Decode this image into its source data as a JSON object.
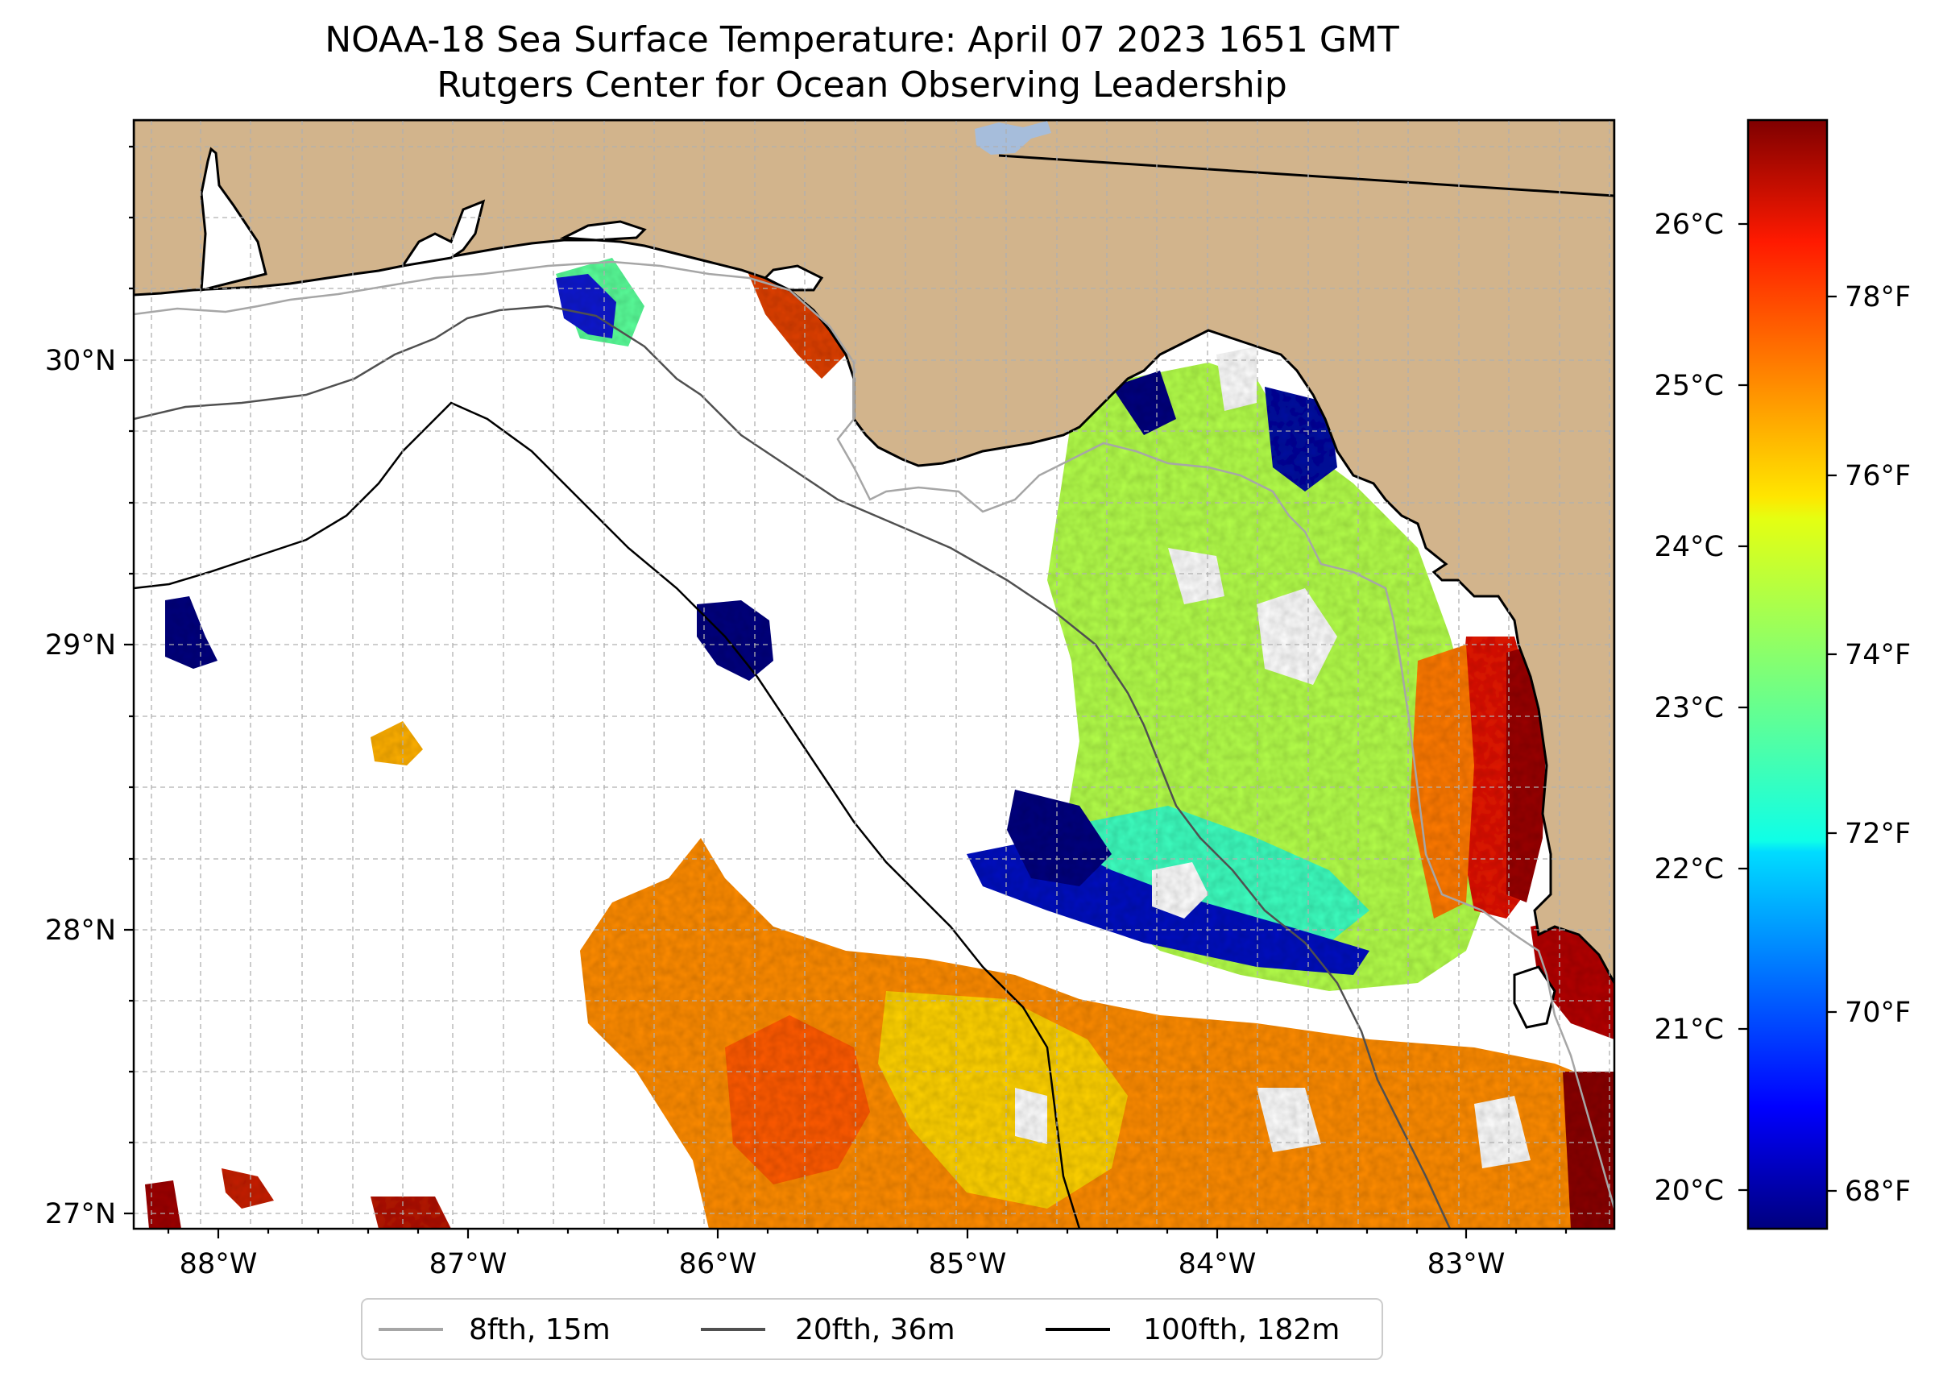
{
  "title": {
    "line1": "NOAA-18 Sea Surface Temperature: April 07 2023 1651 GMT",
    "line2": "Rutgers Center for Ocean Observing Leadership"
  },
  "map": {
    "lon_range": [
      -88.33,
      -82.43
    ],
    "lat_range": [
      26.93,
      30.84
    ],
    "land_color": "#d2b48c",
    "ocean_nodata_color": "#ffffff",
    "lake_color": "#a6bddb",
    "gridlines": true,
    "x_ticks": [
      {
        "lon": -88,
        "label": "88°W"
      },
      {
        "lon": -87,
        "label": "87°W"
      },
      {
        "lon": -86,
        "label": "86°W"
      },
      {
        "lon": -85,
        "label": "85°W"
      },
      {
        "lon": -84,
        "label": "84°W"
      },
      {
        "lon": -83,
        "label": "83°W"
      }
    ],
    "y_ticks": [
      {
        "lat": 27,
        "label": "27°N"
      },
      {
        "lat": 28,
        "label": "28°N"
      },
      {
        "lat": 29,
        "label": "29°N"
      },
      {
        "lat": 30,
        "label": "30°N"
      }
    ]
  },
  "colorbar": {
    "colormap": "jet",
    "celsius_range": [
      19.8,
      26.7
    ],
    "celsius_ticks": [
      {
        "value": 20,
        "label": "20°C"
      },
      {
        "value": 21,
        "label": "21°C"
      },
      {
        "value": 22,
        "label": "22°C"
      },
      {
        "value": 23,
        "label": "23°C"
      },
      {
        "value": 24,
        "label": "24°C"
      },
      {
        "value": 25,
        "label": "25°C"
      },
      {
        "value": 26,
        "label": "26°C"
      }
    ],
    "fahrenheit_ticks": [
      {
        "value": 68,
        "label": "68°F"
      },
      {
        "value": 70,
        "label": "70°F"
      },
      {
        "value": 72,
        "label": "72°F"
      },
      {
        "value": 74,
        "label": "74°F"
      },
      {
        "value": 76,
        "label": "76°F"
      },
      {
        "value": 78,
        "label": "78°F"
      }
    ]
  },
  "legend": {
    "placement": "bottom-center",
    "items": [
      {
        "label": "8fth, 15m",
        "color": "#a6a6a6"
      },
      {
        "label": "20fth, 36m",
        "color": "#505050"
      },
      {
        "label": "100fth, 182m",
        "color": "#000000"
      }
    ]
  }
}
